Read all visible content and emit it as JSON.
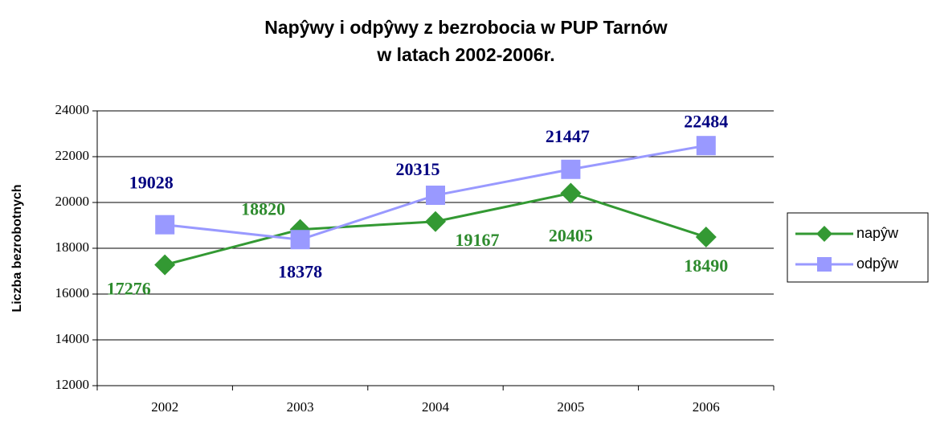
{
  "chart_data": {
    "type": "line",
    "title": [
      "Napŷwy i odpŷwy z bezrobocia w PUP Tarnów",
      "w latach 2002-2006r."
    ],
    "y_label": "Liczba bezrobotnych",
    "categories": [
      "2002",
      "2003",
      "2004",
      "2005",
      "2006"
    ],
    "series": [
      {
        "name": "napŷw",
        "color": "#339933",
        "label_color": "#2e8b2e",
        "marker": "diamond",
        "values": [
          17276,
          18820,
          19167,
          20405,
          18490
        ]
      },
      {
        "name": "odpŷw",
        "color": "#9999ff",
        "label_color": "#000080",
        "marker": "square",
        "values": [
          19028,
          18378,
          20315,
          21447,
          22484
        ]
      }
    ],
    "ylim": [
      12000,
      24000
    ],
    "yticks": [
      12000,
      14000,
      16000,
      18000,
      20000,
      22000,
      24000
    ],
    "grid": true,
    "legend": "right"
  }
}
